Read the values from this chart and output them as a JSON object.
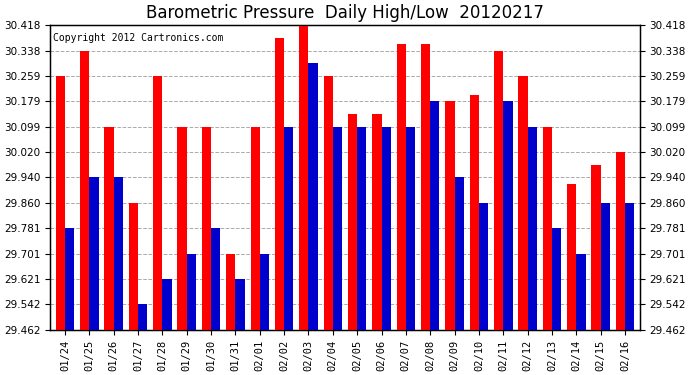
{
  "title": "Barometric Pressure  Daily High/Low  20120217",
  "copyright": "Copyright 2012 Cartronics.com",
  "categories": [
    "01/24",
    "01/25",
    "01/26",
    "01/27",
    "01/28",
    "01/29",
    "01/30",
    "01/31",
    "02/01",
    "02/02",
    "02/03",
    "02/04",
    "02/05",
    "02/06",
    "02/07",
    "02/08",
    "02/09",
    "02/10",
    "02/11",
    "02/12",
    "02/13",
    "02/14",
    "02/15",
    "02/16"
  ],
  "highs": [
    30.259,
    30.338,
    30.099,
    29.86,
    30.259,
    30.099,
    30.099,
    29.701,
    30.099,
    30.378,
    30.418,
    30.259,
    30.14,
    30.14,
    30.358,
    30.358,
    30.179,
    30.2,
    30.338,
    30.259,
    30.099,
    29.92,
    29.98,
    30.02
  ],
  "lows": [
    29.781,
    29.94,
    29.94,
    29.542,
    29.621,
    29.701,
    29.781,
    29.621,
    29.701,
    30.099,
    30.3,
    30.099,
    30.099,
    30.099,
    30.099,
    30.179,
    29.94,
    29.86,
    30.179,
    30.099,
    29.781,
    29.701,
    29.86,
    29.86
  ],
  "ylim_min": 29.462,
  "ylim_max": 30.418,
  "yticks": [
    29.462,
    29.542,
    29.621,
    29.701,
    29.781,
    29.86,
    29.94,
    30.02,
    30.099,
    30.179,
    30.259,
    30.338,
    30.418
  ],
  "high_color": "#FF0000",
  "low_color": "#0000CC",
  "bg_color": "#FFFFFF",
  "grid_color": "#AAAAAA",
  "title_fontsize": 12,
  "copyright_fontsize": 7,
  "bar_width": 0.38
}
